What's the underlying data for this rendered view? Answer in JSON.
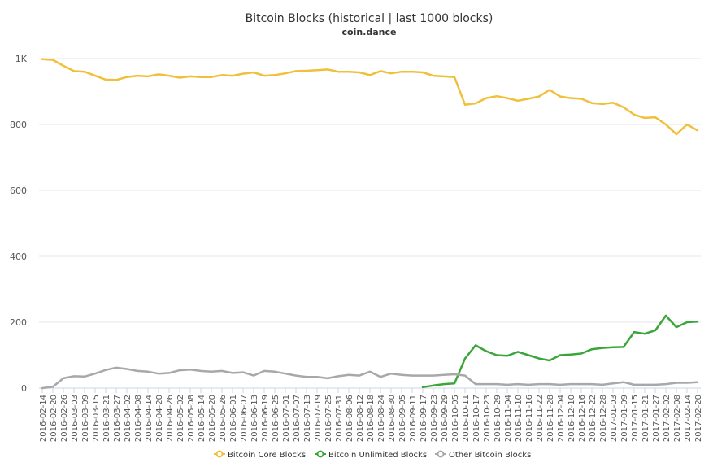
{
  "chart_data": {
    "type": "line",
    "title": "Bitcoin Blocks (historical | last 1000 blocks)",
    "subtitle": "coin.dance",
    "xlabel": "",
    "ylabel": "",
    "ylim": [
      0,
      1000
    ],
    "y_ticks": [
      {
        "value": 0,
        "label": "0"
      },
      {
        "value": 200,
        "label": "200"
      },
      {
        "value": 400,
        "label": "400"
      },
      {
        "value": 600,
        "label": "600"
      },
      {
        "value": 800,
        "label": "800"
      },
      {
        "value": 1000,
        "label": "1K"
      }
    ],
    "grid": true,
    "legend_position": "bottom-center",
    "x": [
      "2016-02-14",
      "2016-02-20",
      "2016-02-26",
      "2016-03-03",
      "2016-03-09",
      "2016-03-15",
      "2016-03-21",
      "2016-03-27",
      "2016-04-02",
      "2016-04-08",
      "2016-04-14",
      "2016-04-20",
      "2016-04-26",
      "2016-05-02",
      "2016-05-08",
      "2016-05-14",
      "2016-05-20",
      "2016-05-26",
      "2016-06-01",
      "2016-06-07",
      "2016-06-13",
      "2016-06-19",
      "2016-06-25",
      "2016-07-01",
      "2016-07-07",
      "2016-07-13",
      "2016-07-19",
      "2016-07-25",
      "2016-07-31",
      "2016-08-06",
      "2016-08-12",
      "2016-08-18",
      "2016-08-24",
      "2016-08-30",
      "2016-09-05",
      "2016-09-11",
      "2016-09-17",
      "2016-09-23",
      "2016-09-29",
      "2016-10-05",
      "2016-10-11",
      "2016-10-17",
      "2016-10-23",
      "2016-10-29",
      "2016-11-04",
      "2016-11-10",
      "2016-11-16",
      "2016-11-22",
      "2016-11-28",
      "2016-12-04",
      "2016-12-10",
      "2016-12-16",
      "2016-12-22",
      "2016-12-28",
      "2017-01-03",
      "2017-01-09",
      "2017-01-15",
      "2017-01-21",
      "2017-01-27",
      "2017-02-02",
      "2017-02-08",
      "2017-02-14",
      "2017-02-20"
    ],
    "series": [
      {
        "name": "Bitcoin Core Blocks",
        "color": "#f0c03a",
        "marker": "circle",
        "values": [
          998,
          996,
          978,
          962,
          960,
          948,
          936,
          935,
          944,
          948,
          946,
          952,
          948,
          942,
          946,
          944,
          944,
          950,
          948,
          954,
          958,
          948,
          950,
          955,
          962,
          963,
          965,
          967,
          960,
          960,
          958,
          950,
          962,
          955,
          960,
          960,
          958,
          948,
          946,
          944,
          860,
          864,
          880,
          886,
          880,
          872,
          878,
          885,
          905,
          885,
          880,
          878,
          865,
          862,
          866,
          852,
          830,
          820,
          822,
          800,
          770,
          800,
          782
        ]
      },
      {
        "name": "Bitcoin Unlimited Blocks",
        "color": "#3aa63a",
        "marker": "circle",
        "values": [
          null,
          null,
          null,
          null,
          null,
          null,
          null,
          null,
          null,
          null,
          null,
          null,
          null,
          null,
          null,
          null,
          null,
          null,
          null,
          null,
          null,
          null,
          null,
          null,
          null,
          null,
          null,
          null,
          null,
          null,
          null,
          null,
          null,
          null,
          null,
          null,
          3,
          8,
          12,
          14,
          90,
          130,
          112,
          100,
          98,
          110,
          100,
          90,
          84,
          100,
          102,
          105,
          118,
          122,
          124,
          125,
          170,
          165,
          175,
          220,
          185,
          200,
          202
        ]
      },
      {
        "name": "Other Bitcoin Blocks",
        "color": "#a8a8a8",
        "marker": "circle",
        "values": [
          0,
          4,
          30,
          36,
          35,
          44,
          55,
          62,
          58,
          52,
          50,
          44,
          46,
          54,
          56,
          52,
          50,
          52,
          46,
          48,
          38,
          52,
          50,
          44,
          38,
          34,
          34,
          30,
          36,
          40,
          38,
          50,
          34,
          44,
          40,
          38,
          38,
          38,
          40,
          42,
          38,
          12,
          12,
          12,
          10,
          12,
          10,
          12,
          12,
          10,
          12,
          12,
          12,
          10,
          14,
          18,
          10,
          10,
          10,
          12,
          16,
          16,
          18
        ]
      }
    ]
  }
}
